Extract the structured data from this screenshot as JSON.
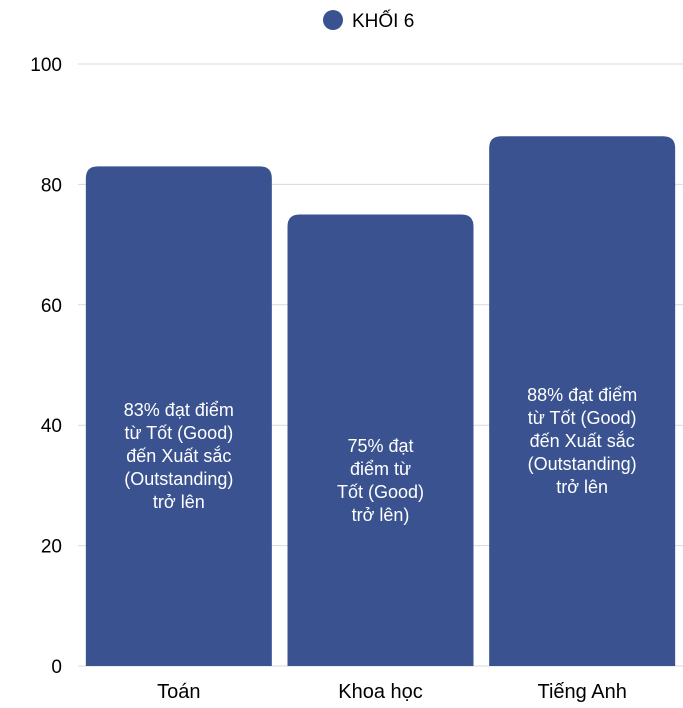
{
  "chart_data": {
    "type": "bar",
    "categories": [
      "Toán",
      "Khoa học",
      "Tiếng Anh"
    ],
    "series": [
      {
        "name": "KHỐI 6",
        "values": [
          83,
          75,
          88
        ],
        "color": "#3a5390"
      }
    ],
    "bar_labels": [
      [
        "83%  đạt điểm",
        "từ Tốt (Good)",
        "đến Xuất sắc",
        "(Outstanding)",
        "trở lên"
      ],
      [
        "75% đạt",
        "điểm từ",
        "Tốt (Good)",
        "trở lên)"
      ],
      [
        "88%  đạt điểm",
        "từ Tốt (Good)",
        "đến Xuất sắc",
        "(Outstanding)",
        "trở lên"
      ]
    ],
    "y_ticks": [
      "0",
      "20",
      "40",
      "60",
      "80",
      "100"
    ],
    "ylim": [
      0,
      100
    ],
    "grid": true,
    "legend_position": "top-center",
    "colors": {
      "bar": "#3a5390",
      "grid": "#d9d9d9",
      "text": "#000000",
      "bar_text": "#ffffff"
    }
  }
}
